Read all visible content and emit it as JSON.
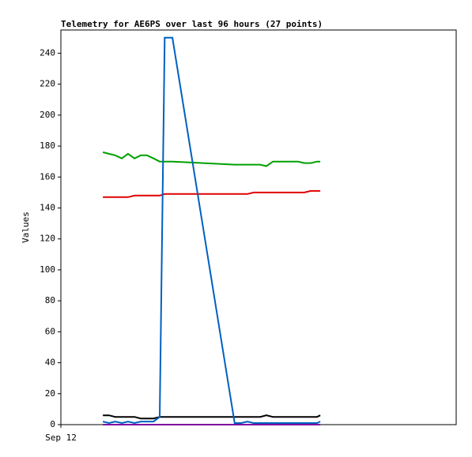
{
  "chart_data": {
    "type": "line",
    "title": "Telemetry for AE6PS over last 96 hours (27 points)",
    "y_label": "Values",
    "x": [
      10.2,
      11.7,
      13.2,
      14.8,
      16.3,
      17.9,
      19.4,
      20.9,
      22.5,
      24.0,
      25.2,
      27.1,
      42.2,
      43.8,
      45.3,
      46.8,
      48.4,
      49.9,
      51.5,
      53.0,
      54.5,
      56.1,
      57.6,
      59.1,
      60.7,
      62.2,
      63.0
    ],
    "xlim": [
      0,
      96
    ],
    "xticks": [
      {
        "value": 0,
        "label": "Sep 12"
      }
    ],
    "ylim": [
      0,
      255
    ],
    "yticks": [
      0,
      20,
      40,
      60,
      80,
      100,
      120,
      140,
      160,
      180,
      200,
      220,
      240
    ],
    "series": [
      {
        "color": "#00a000",
        "values": [
          176,
          175,
          174,
          172,
          175,
          172,
          174,
          174,
          172,
          170,
          170,
          170,
          168,
          168,
          168,
          168,
          168,
          167,
          170,
          170,
          170,
          170,
          170,
          169,
          169,
          170,
          170
        ]
      },
      {
        "color": "#e00000",
        "values": [
          147,
          147,
          147,
          147,
          147,
          148,
          148,
          148,
          148,
          148,
          149,
          149,
          149,
          149,
          149,
          150,
          150,
          150,
          150,
          150,
          150,
          150,
          150,
          150,
          151,
          151,
          151
        ]
      },
      {
        "color": "#000000",
        "values": [
          6,
          6,
          5,
          5,
          5,
          5,
          4,
          4,
          4,
          5,
          5,
          5,
          5,
          5,
          5,
          5,
          5,
          6,
          5,
          5,
          5,
          5,
          5,
          5,
          5,
          5,
          6
        ]
      },
      {
        "color": "#0060c0",
        "values": [
          2,
          1,
          2,
          1,
          2,
          1,
          2,
          2,
          2,
          5,
          250,
          250,
          1,
          1,
          2,
          1,
          1,
          1,
          1,
          1,
          1,
          1,
          1,
          1,
          1,
          1,
          2
        ]
      },
      {
        "color": "#8000a0",
        "values": [
          0,
          0,
          0,
          0,
          0,
          0,
          0,
          0,
          0,
          0,
          0,
          0,
          0,
          0,
          0,
          0,
          0,
          0,
          0,
          0,
          0,
          0,
          0,
          0,
          0,
          0,
          0
        ]
      }
    ]
  }
}
